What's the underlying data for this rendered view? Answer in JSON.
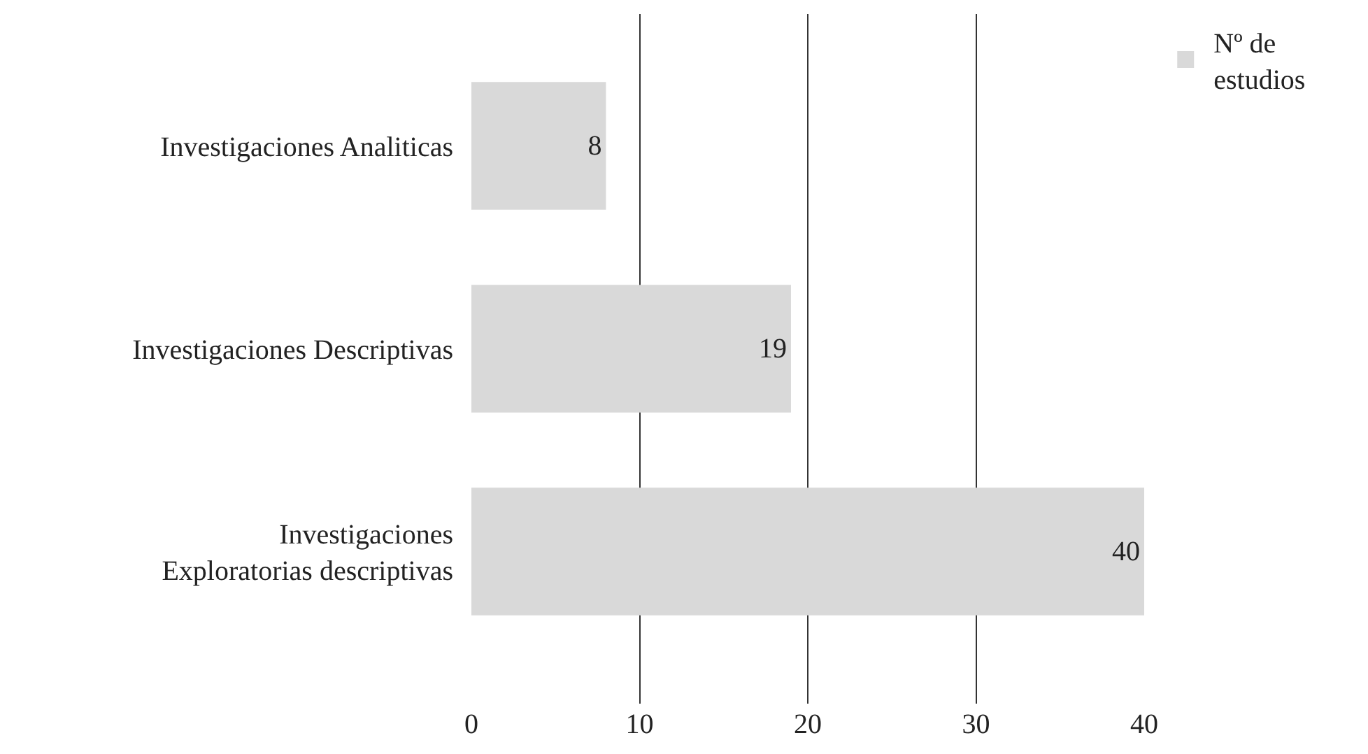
{
  "chart_data": {
    "type": "bar",
    "orientation": "horizontal",
    "categories": [
      "Investigaciones Analiticas",
      "Investigaciones Descriptivas",
      "Investigaciones Exploratorias descriptivas"
    ],
    "series": [
      {
        "name": "Nº de estudios",
        "color": "#d9d9d9",
        "values": [
          8,
          19,
          40
        ]
      }
    ],
    "xlim": [
      0,
      40
    ],
    "xticks": [
      0,
      10,
      20,
      30,
      40
    ],
    "grid": "x",
    "legend": "top right",
    "data_labels": true
  }
}
